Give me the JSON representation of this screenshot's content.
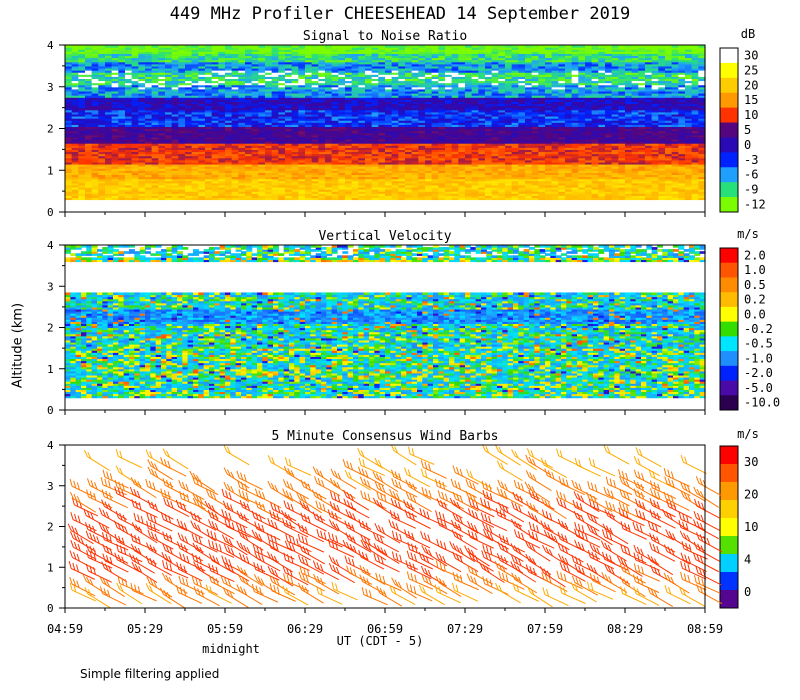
{
  "figure": {
    "title": "449 MHz Profiler CHEESEHEAD 14 September 2019",
    "ylabel": "Altitude (km)",
    "xlabel": "UT  (CDT - 5)",
    "midnight_label": "midnight",
    "footnote": "Simple filtering applied",
    "x_ticks": [
      "04:59",
      "05:29",
      "05:59",
      "06:29",
      "06:59",
      "07:29",
      "07:59",
      "08:29",
      "08:59"
    ]
  },
  "chart_data": [
    {
      "type": "heatmap",
      "title": "Signal to Noise Ratio",
      "ylabel": "Altitude (km)",
      "xlabel": "UT (CDT - 5)",
      "x_range": [
        "04:59",
        "08:59"
      ],
      "ylim": [
        0,
        4
      ],
      "y_ticks": [
        0,
        1,
        2,
        3,
        4
      ],
      "colorbar": {
        "unit": "dB",
        "labels": [
          "30",
          "25",
          "20",
          "15",
          "10",
          "5",
          "0",
          "-3",
          "-6",
          "-9",
          "-12"
        ],
        "colors": [
          "#ffffff",
          "#ffff00",
          "#ffcc00",
          "#ff9900",
          "#ff3300",
          "#55067f",
          "#2a0ab5",
          "#0022ff",
          "#1fa0ff",
          "#28e07a",
          "#7cfc00"
        ]
      },
      "layers": [
        {
          "from_km": 0.3,
          "to_km": 0.8,
          "value_db": 20
        },
        {
          "from_km": 0.8,
          "to_km": 1.15,
          "value_db": 17
        },
        {
          "from_km": 1.15,
          "to_km": 1.65,
          "value_db": 10
        },
        {
          "from_km": 1.65,
          "to_km": 2.05,
          "value_db": 3
        },
        {
          "from_km": 2.05,
          "to_km": 2.4,
          "value_db": -3
        },
        {
          "from_km": 2.4,
          "to_km": 2.7,
          "value_db": 0
        },
        {
          "from_km": 2.7,
          "to_km": 3.0,
          "value_db": -6
        },
        {
          "from_km": 3.0,
          "to_km": 3.3,
          "value_db": -9
        },
        {
          "from_km": 3.3,
          "to_km": 3.55,
          "value_db": -6
        },
        {
          "from_km": 3.55,
          "to_km": 3.75,
          "value_db": -9
        },
        {
          "from_km": 3.75,
          "to_km": 3.95,
          "value_db": -12
        }
      ]
    },
    {
      "type": "heatmap",
      "title": "Vertical Velocity",
      "ylabel": "Altitude (km)",
      "xlabel": "UT (CDT - 5)",
      "x_range": [
        "04:59",
        "08:59"
      ],
      "ylim": [
        0,
        4
      ],
      "y_ticks": [
        0,
        1,
        2,
        3,
        4
      ],
      "colorbar": {
        "unit": "m/s",
        "labels": [
          "2.0",
          "1.0",
          "0.5",
          "0.2",
          "0.0",
          "-0.2",
          "-0.5",
          "-1.0",
          "-2.0",
          "-5.0",
          "-10.0"
        ],
        "colors": [
          "#ff0000",
          "#ff5500",
          "#ff8c00",
          "#ffbb00",
          "#ffff00",
          "#33dd00",
          "#00e5ff",
          "#1f8fff",
          "#0022ff",
          "#4a0aa8",
          "#2b0050"
        ]
      },
      "layers": [
        {
          "from_km": 0.3,
          "to_km": 1.5,
          "value_ms": -0.4
        },
        {
          "from_km": 1.5,
          "to_km": 2.8,
          "value_ms": -0.5
        },
        {
          "from_km": 2.1,
          "to_km": 2.4,
          "value_ms": -1.0
        },
        {
          "from_km": 3.55,
          "to_km": 3.65,
          "value_ms": -0.2
        },
        {
          "from_km": 3.65,
          "to_km": 3.95,
          "value_ms": -0.5
        }
      ]
    },
    {
      "type": "scatter",
      "title": "5 Minute Consensus Wind Barbs",
      "ylabel": "Altitude (km)",
      "xlabel": "UT (CDT - 5)",
      "x_range": [
        "04:59",
        "08:59"
      ],
      "ylim": [
        0,
        4
      ],
      "y_ticks": [
        0,
        1,
        2,
        3,
        4
      ],
      "colorbar": {
        "unit": "m/s",
        "labels": [
          "30",
          "20",
          "10",
          "4",
          "0"
        ],
        "colors": [
          "#ff0000",
          "#ff5500",
          "#ff9900",
          "#ffd000",
          "#ffff00",
          "#55e000",
          "#00cfff",
          "#0033ff",
          "#55068f"
        ]
      },
      "wind_profile": [
        {
          "alt_km": 0.5,
          "speed_ms": 20
        },
        {
          "alt_km": 1.0,
          "speed_ms": 27
        },
        {
          "alt_km": 1.5,
          "speed_ms": 29
        },
        {
          "alt_km": 2.0,
          "speed_ms": 28
        },
        {
          "alt_km": 2.5,
          "speed_ms": 26
        },
        {
          "alt_km": 3.0,
          "speed_ms": 22
        },
        {
          "alt_km": 3.8,
          "speed_ms": 18
        }
      ]
    }
  ]
}
